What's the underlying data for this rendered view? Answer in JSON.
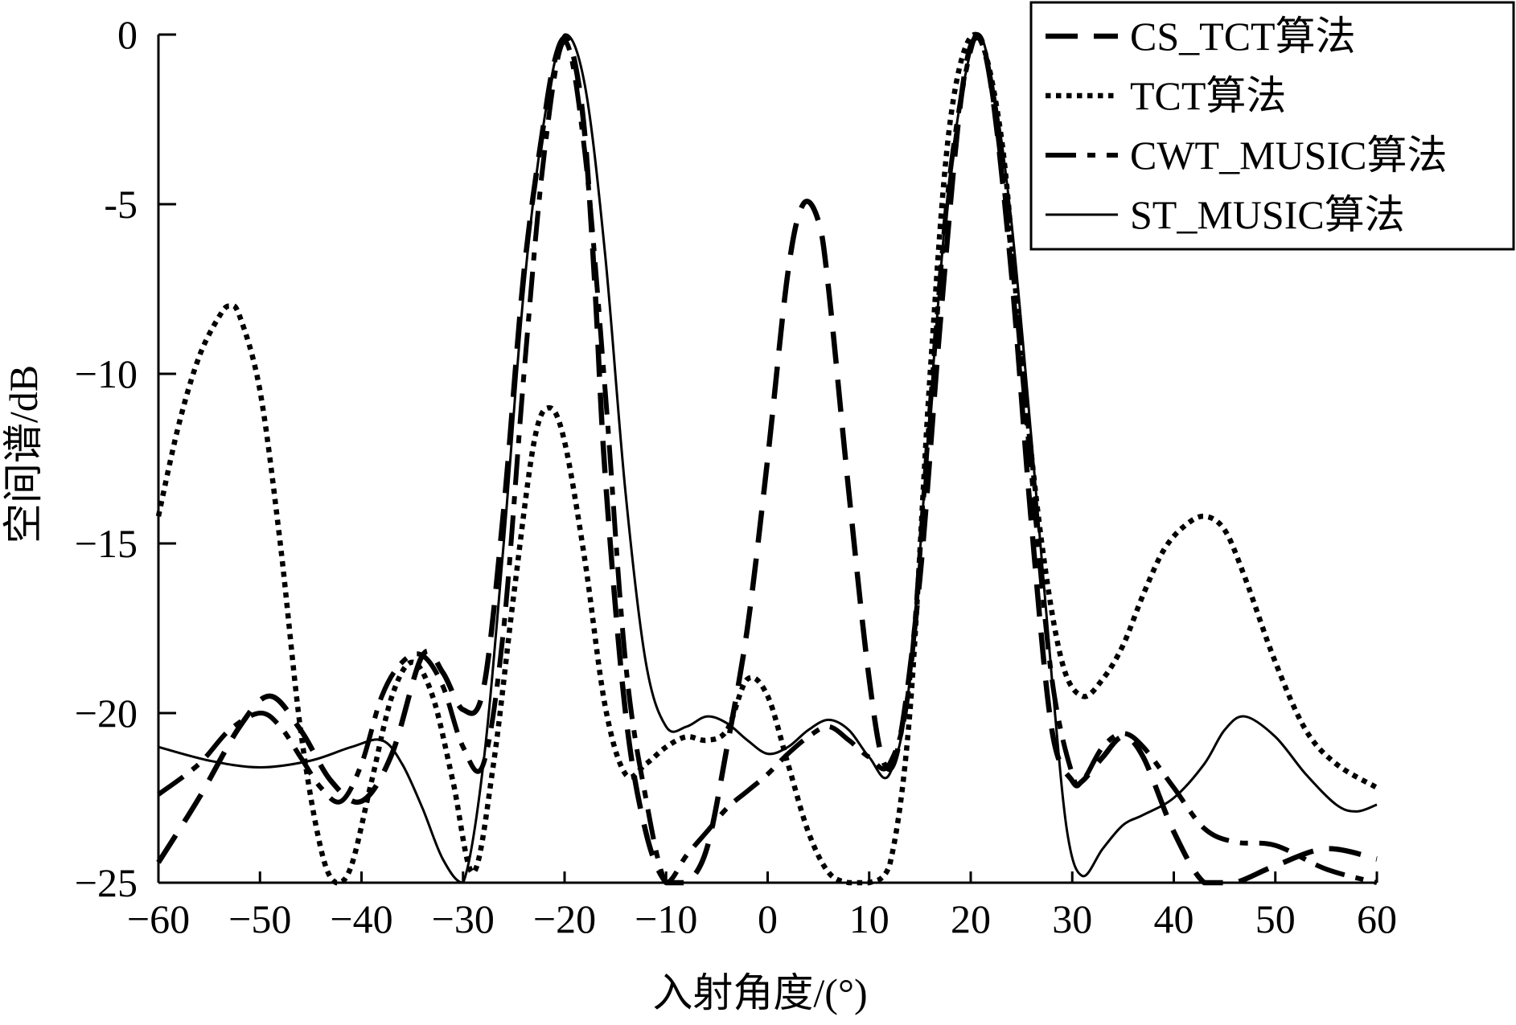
{
  "chart_data": {
    "type": "line",
    "title": "",
    "xlabel": "入射角度/(°)",
    "ylabel": "空间谱/dB",
    "xlim": [
      -60,
      60
    ],
    "ylim": [
      -25,
      0
    ],
    "xticks": [
      -60,
      -50,
      -40,
      -30,
      -20,
      -10,
      0,
      10,
      20,
      30,
      40,
      50,
      60
    ],
    "yticks": [
      0,
      -5,
      -10,
      -15,
      -20,
      -25
    ],
    "xtick_labels": [
      "−60",
      "−50",
      "−40",
      "−30",
      "−20",
      "−10",
      "0",
      "10",
      "20",
      "30",
      "40",
      "50",
      "60"
    ],
    "ytick_labels": [
      "0",
      "-5",
      "−10",
      "−15",
      "−20",
      "−25"
    ],
    "grid": false,
    "legend_position": "top-right",
    "series": [
      {
        "name": "CS_TCT算法",
        "style": "dashed",
        "x": [
          -60,
          -56,
          -52,
          -49,
          -46,
          -43,
          -40,
          -37,
          -34,
          -32,
          -30,
          -28,
          -26,
          -24,
          -22,
          -21,
          -20,
          -19,
          -18,
          -17,
          -16,
          -14,
          -12,
          -10,
          -8,
          -6,
          -4,
          -2,
          0,
          2,
          3.5,
          5,
          6,
          8,
          10,
          11.5,
          13,
          15,
          17,
          19,
          20.5,
          22,
          24,
          26,
          28,
          30,
          31,
          33,
          35,
          37,
          40,
          43,
          46,
          50,
          55,
          60
        ],
        "y": [
          -24.4,
          -22.5,
          -20.4,
          -19.5,
          -20.5,
          -22.0,
          -22.6,
          -21.2,
          -18.3,
          -18.8,
          -19.9,
          -19.3,
          -14.0,
          -7.0,
          -2.5,
          -0.8,
          -0.1,
          -0.8,
          -3.0,
          -7.5,
          -13.0,
          -20.0,
          -23.5,
          -25.0,
          -25.0,
          -24.0,
          -21.0,
          -17.5,
          -12.5,
          -7.0,
          -5.0,
          -5.5,
          -7.5,
          -13.5,
          -19.0,
          -21.5,
          -20.8,
          -16.0,
          -8.5,
          -2.0,
          -0.1,
          -1.5,
          -7.0,
          -14.5,
          -20.5,
          -22.0,
          -22.0,
          -21.3,
          -20.7,
          -21.3,
          -23.5,
          -25.0,
          -25.0,
          -24.5,
          -24.0,
          -24.3
        ]
      },
      {
        "name": "TCT算法",
        "style": "dotted",
        "x": [
          -60,
          -58,
          -56,
          -54,
          -53,
          -52,
          -50,
          -48,
          -46,
          -44,
          -42.5,
          -41,
          -39,
          -37,
          -35,
          -33,
          -31,
          -29,
          -27,
          -25,
          -23,
          -21.5,
          -20,
          -18,
          -16,
          -14,
          -12,
          -10,
          -8,
          -6,
          -4,
          -2,
          0,
          2,
          4,
          6,
          8,
          10,
          12,
          14,
          16,
          18,
          20.5,
          23,
          25,
          27,
          29,
          31,
          33,
          35,
          37,
          39,
          41,
          43,
          45,
          47,
          50,
          53,
          56,
          60
        ],
        "y": [
          -14.2,
          -11.5,
          -9.5,
          -8.3,
          -8.0,
          -8.3,
          -10.5,
          -15.0,
          -20.5,
          -24.0,
          -25.0,
          -24.5,
          -22.0,
          -19.5,
          -18.5,
          -19.5,
          -22.0,
          -24.7,
          -21.5,
          -16.5,
          -12.0,
          -11.0,
          -12.0,
          -15.5,
          -19.8,
          -21.8,
          -21.5,
          -21.0,
          -20.7,
          -20.8,
          -20.5,
          -19.0,
          -19.5,
          -21.5,
          -23.5,
          -24.7,
          -25.0,
          -25.0,
          -24.5,
          -20.0,
          -10.0,
          -2.5,
          0.0,
          -3.0,
          -9.5,
          -15.0,
          -18.5,
          -19.5,
          -19.0,
          -18.0,
          -16.5,
          -15.2,
          -14.5,
          -14.2,
          -14.6,
          -16.0,
          -18.5,
          -20.5,
          -21.5,
          -22.2
        ]
      },
      {
        "name": "CWT_MUSIC算法",
        "style": "dashdot",
        "x": [
          -60,
          -56,
          -53,
          -50,
          -48,
          -46,
          -44,
          -42,
          -40,
          -38,
          -36,
          -34,
          -32,
          -30,
          -28,
          -26,
          -24,
          -22,
          -20,
          -18,
          -16,
          -14,
          -12,
          -10,
          -8,
          -6,
          -4,
          -2,
          0,
          2,
          4,
          6,
          8,
          10,
          12,
          14,
          16,
          18,
          20.5,
          22,
          24,
          26,
          28,
          30,
          31,
          33,
          35,
          37,
          40,
          43,
          46,
          50,
          55,
          60
        ],
        "y": [
          -22.4,
          -21.5,
          -20.5,
          -20.0,
          -20.4,
          -21.3,
          -22.2,
          -22.6,
          -21.5,
          -19.5,
          -18.5,
          -18.3,
          -19.2,
          -21.0,
          -21.5,
          -17.5,
          -10.0,
          -3.5,
          -0.2,
          -3.5,
          -10.5,
          -18.5,
          -22.5,
          -25.0,
          -24.2,
          -23.5,
          -22.8,
          -22.3,
          -21.8,
          -21.2,
          -20.7,
          -20.4,
          -20.8,
          -21.3,
          -21.5,
          -19.0,
          -11.0,
          -4.0,
          0.0,
          -1.5,
          -6.5,
          -13.0,
          -19.0,
          -21.8,
          -22.0,
          -21.0,
          -20.6,
          -21.0,
          -22.2,
          -23.4,
          -23.8,
          -23.9,
          -24.6,
          -25.0
        ]
      },
      {
        "name": "ST_MUSIC算法",
        "style": "solid",
        "x": [
          -60,
          -55,
          -50,
          -45,
          -41,
          -38,
          -36,
          -34,
          -32,
          -30,
          -28,
          -26,
          -24,
          -22,
          -20,
          -18,
          -16,
          -14,
          -12,
          -10,
          -8,
          -6,
          -4,
          -2,
          0,
          2,
          4,
          6,
          8,
          10,
          12,
          14,
          16,
          18,
          20.5,
          22,
          24,
          26,
          28,
          29.5,
          31,
          33,
          35,
          37,
          40,
          43,
          45,
          47,
          50,
          53,
          56,
          58,
          60
        ],
        "y": [
          -21.0,
          -21.4,
          -21.6,
          -21.4,
          -21.0,
          -20.8,
          -21.5,
          -22.8,
          -24.3,
          -25.0,
          -21.5,
          -15.0,
          -7.5,
          -2.5,
          0.0,
          -1.5,
          -6.5,
          -13.5,
          -18.5,
          -20.4,
          -20.4,
          -20.1,
          -20.3,
          -20.8,
          -21.2,
          -21.0,
          -20.5,
          -20.2,
          -20.5,
          -21.3,
          -21.8,
          -19.0,
          -11.0,
          -4.0,
          0.0,
          -1.2,
          -5.5,
          -12.0,
          -19.0,
          -23.5,
          -24.8,
          -24.0,
          -23.3,
          -23.0,
          -22.5,
          -21.5,
          -20.5,
          -20.1,
          -20.7,
          -21.8,
          -22.7,
          -22.9,
          -22.7
        ]
      }
    ]
  }
}
